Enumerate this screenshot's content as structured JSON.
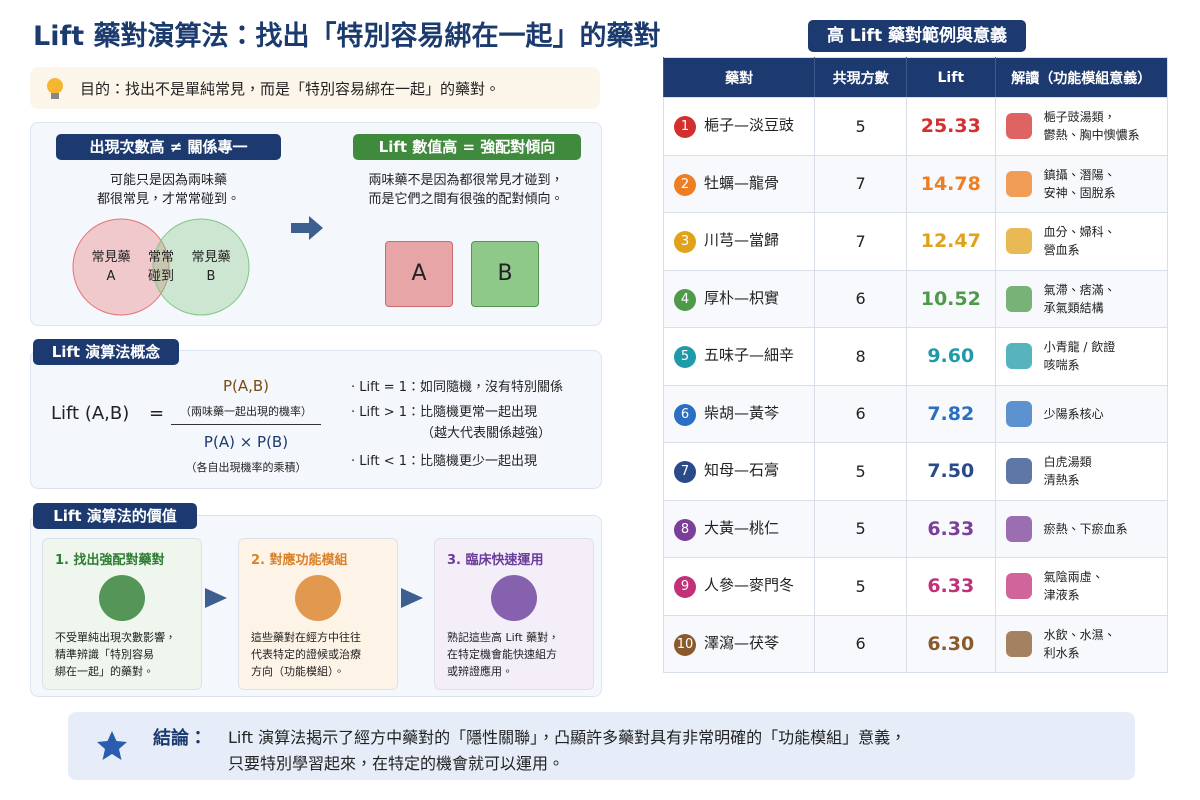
{
  "title": "Lift 藥對演算法：找出「特別容易綁在一起」的藥對",
  "purpose": "目的：找出不是單純常見，而是「特別容易綁在一起」的藥對。",
  "compare": {
    "left": {
      "heading": "出現次數高 ≠ 關係專一",
      "lines": [
        "可能只是因為兩味藥",
        "都很常見，才常常碰到。"
      ],
      "venn": {
        "a": [
          "常見藥",
          "A"
        ],
        "both": [
          "常常",
          "碰到"
        ],
        "b": [
          "常見藥",
          "B"
        ]
      }
    },
    "right": {
      "heading": "Lift 數值高 = 強配對傾向",
      "lines": [
        "兩味藥不是因為都很常見才碰到，",
        "而是它們之間有很強的配對傾向。"
      ],
      "pieces": [
        "A",
        "B"
      ]
    }
  },
  "concept": {
    "label": "Lift 演算法概念",
    "lhs": "Lift (A,B)",
    "eq": "=",
    "numerator": "P(A,B)",
    "numerator_note": "（兩味藥一起出現的機率）",
    "denominator": "P(A) × P(B)",
    "denominator_note": "（各自出現機率的乘積）",
    "bullets": [
      "Lift = 1：如同隨機，沒有特別關係",
      "Lift > 1：比隨機更常一起出現",
      "（越大代表關係越強）",
      "Lift < 1：比隨機更少一起出現"
    ]
  },
  "value": {
    "label": "Lift 演算法的價值",
    "cards": [
      {
        "title": "1. 找出強配對藥對",
        "color": "#2e7d32",
        "bg": "#eef6ee",
        "lines": [
          "不受單純出現次數影響，",
          "精準辨識「特別容易",
          "綁在一起」的藥對。"
        ]
      },
      {
        "title": "2. 對應功能模組",
        "color": "#d9822b",
        "bg": "#fdf3e6",
        "lines": [
          "這些藥對在經方中往往",
          "代表特定的證候或治療",
          "方向（功能模組）。"
        ]
      },
      {
        "title": "3. 臨床快速運用",
        "color": "#6a3d9a",
        "bg": "#f3eef8",
        "lines": [
          "熟記這些高 Lift 藥對，",
          "在特定機會能快速組方",
          "或辨證應用。"
        ]
      }
    ]
  },
  "conclusion": {
    "label": "結論：",
    "lines": [
      "Lift 演算法揭示了經方中藥對的「隱性關聯」，凸顯許多藥對具有非常明確的「功能模組」意義，",
      "只要特別學習起來，在特定的機會就可以運用。"
    ]
  },
  "table": {
    "title": "高 Lift 藥對範例與意義",
    "headers": [
      "藥對",
      "共現方數",
      "Lift",
      "解讀（功能模組意義）"
    ],
    "rows": [
      {
        "rank": 1,
        "pair": "梔子—淡豆豉",
        "count": 5,
        "lift": "25.33",
        "color": "#d32f2f",
        "meaning": [
          "梔子豉湯類，",
          "鬱熱、胸中懊憹系"
        ]
      },
      {
        "rank": 2,
        "pair": "牡蠣—龍骨",
        "count": 7,
        "lift": "14.78",
        "color": "#ef7d22",
        "meaning": [
          "鎮攝、潛陽、",
          "安神、固脫系"
        ]
      },
      {
        "rank": 3,
        "pair": "川芎—當歸",
        "count": 7,
        "lift": "12.47",
        "color": "#e0a21b",
        "meaning": [
          "血分、婦科、",
          "營血系"
        ]
      },
      {
        "rank": 4,
        "pair": "厚朴—枳實",
        "count": 6,
        "lift": "10.52",
        "color": "#4f9a4a",
        "meaning": [
          "氣滯、痞滿、",
          "承氣類結構"
        ]
      },
      {
        "rank": 5,
        "pair": "五味子—細辛",
        "count": 8,
        "lift": "9.60",
        "color": "#1f9aa8",
        "meaning": [
          "小青龍 / 飲證",
          "咳喘系"
        ]
      },
      {
        "rank": 6,
        "pair": "柴胡—黃芩",
        "count": 6,
        "lift": "7.82",
        "color": "#2a6fc1",
        "meaning": [
          "少陽系核心"
        ]
      },
      {
        "rank": 7,
        "pair": "知母—石膏",
        "count": 5,
        "lift": "7.50",
        "color": "#2a4a8a",
        "meaning": [
          "白虎湯類",
          "清熱系"
        ]
      },
      {
        "rank": 8,
        "pair": "大黃—桃仁",
        "count": 5,
        "lift": "6.33",
        "color": "#7b3f98",
        "meaning": [
          "瘀熱、下瘀血系"
        ]
      },
      {
        "rank": 9,
        "pair": "人參—麥門冬",
        "count": 5,
        "lift": "6.33",
        "color": "#c2307a",
        "meaning": [
          "氣陰兩虛、",
          "津液系"
        ]
      },
      {
        "rank": 10,
        "pair": "澤瀉—茯苓",
        "count": 6,
        "lift": "6.30",
        "color": "#8a5a2b",
        "meaning": [
          "水飲、水濕、",
          "利水系"
        ]
      }
    ]
  }
}
